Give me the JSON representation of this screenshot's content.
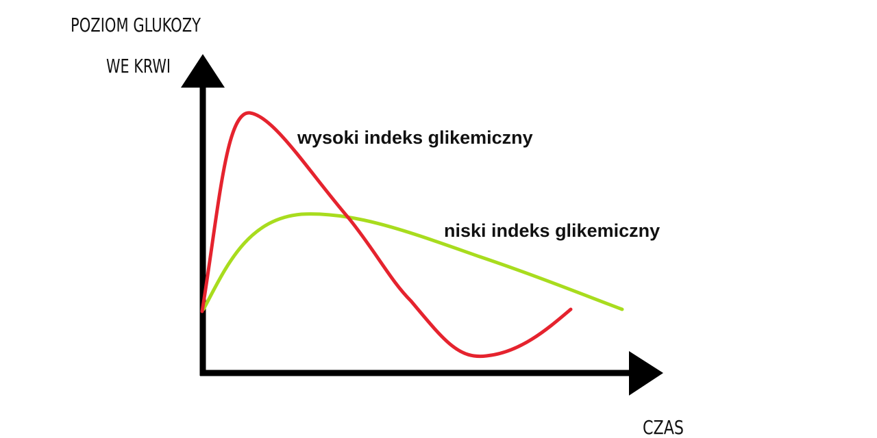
{
  "y_axis_label": {
    "lines": [
      "POZIOM GLUKOZY",
      "WE KRWI"
    ]
  },
  "x_axis_label": "CZAS",
  "curves": [
    {
      "label": "wysoki indeks glikemiczny"
    },
    {
      "label": "niski indeks glikemiczny"
    }
  ]
}
